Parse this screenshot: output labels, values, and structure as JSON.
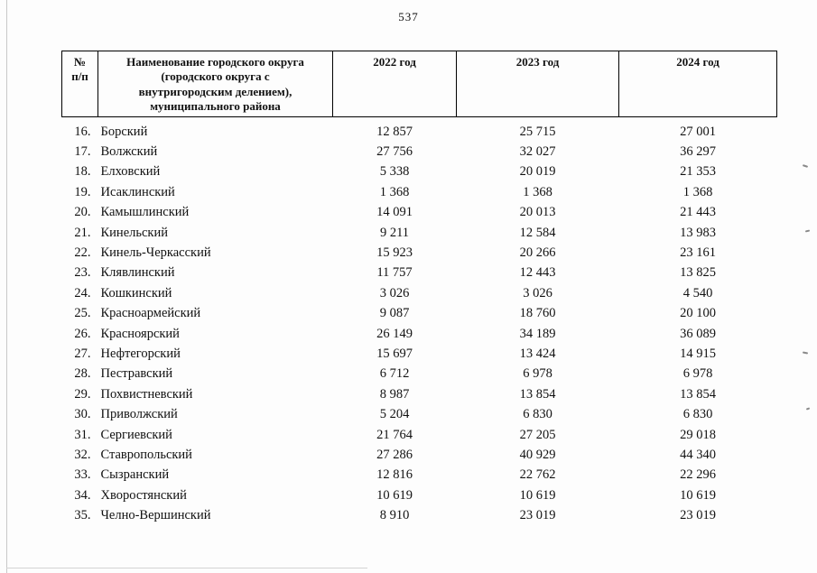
{
  "page_number": "537",
  "table": {
    "headers": {
      "num": "№\nп/п",
      "name": "Наименование городского округа\n(городского округа с\nвнутригородским делением),\nмуниципального района",
      "year2022": "2022 год",
      "year2023": "2023 год",
      "year2024": "2024 год"
    },
    "rows": [
      {
        "num": "16.",
        "name": "Борский",
        "y2022": "12 857",
        "y2023": "25 715",
        "y2024": "27 001"
      },
      {
        "num": "17.",
        "name": "Волжский",
        "y2022": "27 756",
        "y2023": "32 027",
        "y2024": "36 297"
      },
      {
        "num": "18.",
        "name": "Елховский",
        "y2022": "5 338",
        "y2023": "20 019",
        "y2024": "21 353"
      },
      {
        "num": "19.",
        "name": "Исаклинский",
        "y2022": "1 368",
        "y2023": "1 368",
        "y2024": "1 368"
      },
      {
        "num": "20.",
        "name": "Камышлинский",
        "y2022": "14 091",
        "y2023": "20 013",
        "y2024": "21 443"
      },
      {
        "num": "21.",
        "name": "Кинельский",
        "y2022": "9 211",
        "y2023": "12 584",
        "y2024": "13 983"
      },
      {
        "num": "22.",
        "name": "Кинель-Черкасский",
        "y2022": "15 923",
        "y2023": "20 266",
        "y2024": "23 161"
      },
      {
        "num": "23.",
        "name": "Клявлинский",
        "y2022": "11 757",
        "y2023": "12 443",
        "y2024": "13 825"
      },
      {
        "num": "24.",
        "name": "Кошкинский",
        "y2022": "3 026",
        "y2023": "3 026",
        "y2024": "4 540"
      },
      {
        "num": "25.",
        "name": "Красноармейский",
        "y2022": "9 087",
        "y2023": "18 760",
        "y2024": "20 100"
      },
      {
        "num": "26.",
        "name": "Красноярский",
        "y2022": "26 149",
        "y2023": "34 189",
        "y2024": "36 089"
      },
      {
        "num": "27.",
        "name": "Нефтегорский",
        "y2022": "15 697",
        "y2023": "13 424",
        "y2024": "14 915"
      },
      {
        "num": "28.",
        "name": "Пестравский",
        "y2022": "6 712",
        "y2023": "6 978",
        "y2024": "6 978"
      },
      {
        "num": "29.",
        "name": "Похвистневский",
        "y2022": "8 987",
        "y2023": "13 854",
        "y2024": "13 854"
      },
      {
        "num": "30.",
        "name": "Приволжский",
        "y2022": "5 204",
        "y2023": "6 830",
        "y2024": "6 830"
      },
      {
        "num": "31.",
        "name": "Сергиевский",
        "y2022": "21 764",
        "y2023": "27 205",
        "y2024": "29 018"
      },
      {
        "num": "32.",
        "name": "Ставропольский",
        "y2022": "27 286",
        "y2023": "40 929",
        "y2024": "44 340"
      },
      {
        "num": "33.",
        "name": "Сызранский",
        "y2022": "12 816",
        "y2023": "22 762",
        "y2024": "22 296"
      },
      {
        "num": "34.",
        "name": "Хворостянский",
        "y2022": "10 619",
        "y2023": "10 619",
        "y2024": "10 619"
      },
      {
        "num": "35.",
        "name": "Челно-Вершинский",
        "y2022": "8 910",
        "y2023": "23 019",
        "y2024": "23 019"
      }
    ]
  }
}
